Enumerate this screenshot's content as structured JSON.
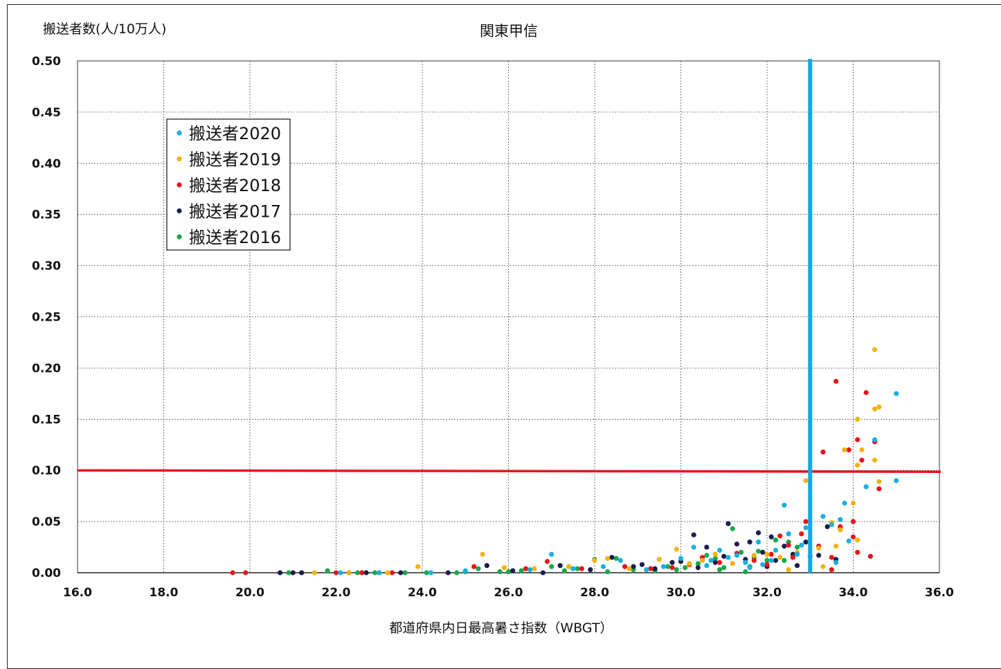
{
  "chart_data": {
    "type": "scatter",
    "title": "関東甲信",
    "ylabel": "搬送者数(人/10万人)",
    "xlabel": "都道府県内日最高暑さ指数（WBGT）",
    "xlim": [
      16.0,
      36.0
    ],
    "ylim": [
      0.0,
      0.5
    ],
    "xticks": [
      "16.0",
      "18.0",
      "20.0",
      "22.0",
      "24.0",
      "26.0",
      "28.0",
      "30.0",
      "32.0",
      "34.0",
      "36.0"
    ],
    "yticks": [
      "0.00",
      "0.05",
      "0.10",
      "0.15",
      "0.20",
      "0.25",
      "0.30",
      "0.35",
      "0.40",
      "0.45",
      "0.50"
    ],
    "grid": true,
    "legend_position": "top-left",
    "reference_lines": [
      {
        "orientation": "horizontal",
        "value": 0.1,
        "color": "#e8141c"
      },
      {
        "orientation": "vertical",
        "value": 33.0,
        "color": "#14a8e6"
      }
    ],
    "series": [
      {
        "name": "搬送者2020",
        "color": "#19afe0",
        "points": [
          [
            22.1,
            0.0
          ],
          [
            23.0,
            0.0
          ],
          [
            24.2,
            0.0
          ],
          [
            25.0,
            0.002
          ],
          [
            26.5,
            0.003
          ],
          [
            27.0,
            0.018
          ],
          [
            27.5,
            0.004
          ],
          [
            28.2,
            0.006
          ],
          [
            28.6,
            0.012
          ],
          [
            29.2,
            0.003
          ],
          [
            29.6,
            0.006
          ],
          [
            30.0,
            0.014
          ],
          [
            30.3,
            0.025
          ],
          [
            30.6,
            0.007
          ],
          [
            30.9,
            0.022
          ],
          [
            31.1,
            0.015
          ],
          [
            31.3,
            0.017
          ],
          [
            31.5,
            0.01
          ],
          [
            31.8,
            0.03
          ],
          [
            31.9,
            0.008
          ],
          [
            32.2,
            0.022
          ],
          [
            32.4,
            0.066
          ],
          [
            32.5,
            0.038
          ],
          [
            32.7,
            0.018
          ],
          [
            32.8,
            0.027
          ],
          [
            32.9,
            0.044
          ],
          [
            33.0,
            0.016
          ],
          [
            33.3,
            0.055
          ],
          [
            33.5,
            0.047
          ],
          [
            33.6,
            0.01
          ],
          [
            33.7,
            0.052
          ],
          [
            33.8,
            0.068
          ],
          [
            34.3,
            0.084
          ],
          [
            34.5,
            0.13
          ],
          [
            35.0,
            0.175
          ],
          [
            35.0,
            0.09
          ],
          [
            33.9,
            0.031
          ],
          [
            32.1,
            0.012
          ],
          [
            31.6,
            0.005
          ],
          [
            30.7,
            0.012
          ]
        ]
      },
      {
        "name": "搬送者2019",
        "color": "#f2b30c",
        "points": [
          [
            21.5,
            0.0
          ],
          [
            22.3,
            0.0
          ],
          [
            23.2,
            0.0
          ],
          [
            23.9,
            0.006
          ],
          [
            25.4,
            0.018
          ],
          [
            25.9,
            0.005
          ],
          [
            26.6,
            0.004
          ],
          [
            27.4,
            0.006
          ],
          [
            28.0,
            0.012
          ],
          [
            28.3,
            0.014
          ],
          [
            28.8,
            0.004
          ],
          [
            29.5,
            0.013
          ],
          [
            29.9,
            0.023
          ],
          [
            30.2,
            0.009
          ],
          [
            30.5,
            0.012
          ],
          [
            30.8,
            0.018
          ],
          [
            31.2,
            0.009
          ],
          [
            31.5,
            0.01
          ],
          [
            31.7,
            0.017
          ],
          [
            32.0,
            0.018
          ],
          [
            32.3,
            0.015
          ],
          [
            32.5,
            0.003
          ],
          [
            32.7,
            0.02
          ],
          [
            32.9,
            0.09
          ],
          [
            33.2,
            0.024
          ],
          [
            33.5,
            0.049
          ],
          [
            33.6,
            0.026
          ],
          [
            33.7,
            0.042
          ],
          [
            33.8,
            0.12
          ],
          [
            34.0,
            0.068
          ],
          [
            34.1,
            0.105
          ],
          [
            34.1,
            0.15
          ],
          [
            34.2,
            0.12
          ],
          [
            34.5,
            0.11
          ],
          [
            34.5,
            0.16
          ],
          [
            34.6,
            0.162
          ],
          [
            34.5,
            0.218
          ],
          [
            34.6,
            0.089
          ],
          [
            34.1,
            0.032
          ],
          [
            33.3,
            0.006
          ]
        ]
      },
      {
        "name": "搬送者2018",
        "color": "#e8141c",
        "points": [
          [
            19.6,
            0.0
          ],
          [
            19.9,
            0.0
          ],
          [
            22.0,
            0.0
          ],
          [
            22.6,
            0.0
          ],
          [
            23.3,
            0.0
          ],
          [
            25.2,
            0.006
          ],
          [
            26.4,
            0.004
          ],
          [
            26.9,
            0.011
          ],
          [
            27.7,
            0.004
          ],
          [
            28.7,
            0.006
          ],
          [
            29.3,
            0.004
          ],
          [
            29.8,
            0.005
          ],
          [
            30.2,
            0.008
          ],
          [
            30.5,
            0.015
          ],
          [
            30.9,
            0.01
          ],
          [
            31.3,
            0.019
          ],
          [
            31.7,
            0.012
          ],
          [
            32.0,
            0.008
          ],
          [
            32.1,
            0.018
          ],
          [
            32.3,
            0.036
          ],
          [
            32.5,
            0.027
          ],
          [
            32.6,
            0.015
          ],
          [
            32.8,
            0.038
          ],
          [
            32.9,
            0.05
          ],
          [
            33.2,
            0.026
          ],
          [
            33.3,
            0.118
          ],
          [
            33.5,
            0.003
          ],
          [
            33.5,
            0.015
          ],
          [
            33.6,
            0.187
          ],
          [
            33.7,
            0.045
          ],
          [
            33.9,
            0.12
          ],
          [
            34.0,
            0.05
          ],
          [
            34.0,
            0.035
          ],
          [
            34.1,
            0.02
          ],
          [
            34.1,
            0.13
          ],
          [
            34.2,
            0.11
          ],
          [
            34.3,
            0.176
          ],
          [
            34.4,
            0.016
          ],
          [
            34.5,
            0.128
          ],
          [
            34.6,
            0.082
          ]
        ]
      },
      {
        "name": "搬送者2017",
        "color": "#1a1f4f",
        "points": [
          [
            20.7,
            0.0
          ],
          [
            21.0,
            0.0
          ],
          [
            21.2,
            0.0
          ],
          [
            22.3,
            0.0
          ],
          [
            22.7,
            0.0
          ],
          [
            23.5,
            0.0
          ],
          [
            24.6,
            0.0
          ],
          [
            25.5,
            0.007
          ],
          [
            26.1,
            0.002
          ],
          [
            26.8,
            0.0
          ],
          [
            27.2,
            0.007
          ],
          [
            27.9,
            0.003
          ],
          [
            28.4,
            0.015
          ],
          [
            28.9,
            0.006
          ],
          [
            29.4,
            0.004
          ],
          [
            29.8,
            0.01
          ],
          [
            30.0,
            0.011
          ],
          [
            30.3,
            0.037
          ],
          [
            30.6,
            0.025
          ],
          [
            30.8,
            0.01
          ],
          [
            31.1,
            0.048
          ],
          [
            31.3,
            0.028
          ],
          [
            31.5,
            0.013
          ],
          [
            31.6,
            0.03
          ],
          [
            31.8,
            0.039
          ],
          [
            31.9,
            0.02
          ],
          [
            32.1,
            0.035
          ],
          [
            32.2,
            0.012
          ],
          [
            32.4,
            0.026
          ],
          [
            32.6,
            0.018
          ],
          [
            32.7,
            0.007
          ],
          [
            32.9,
            0.03
          ],
          [
            33.2,
            0.017
          ],
          [
            33.4,
            0.045
          ],
          [
            33.6,
            0.013
          ],
          [
            33.7,
            0.044
          ],
          [
            32.0,
            0.006
          ],
          [
            31.0,
            0.016
          ],
          [
            30.4,
            0.005
          ],
          [
            29.1,
            0.008
          ]
        ]
      },
      {
        "name": "搬送者2016",
        "color": "#17a84a",
        "points": [
          [
            20.9,
            0.0
          ],
          [
            21.8,
            0.002
          ],
          [
            22.5,
            0.0
          ],
          [
            22.9,
            0.0
          ],
          [
            23.6,
            0.0
          ],
          [
            24.1,
            0.0
          ],
          [
            24.8,
            0.0
          ],
          [
            25.3,
            0.004
          ],
          [
            25.8,
            0.001
          ],
          [
            26.3,
            0.002
          ],
          [
            27.0,
            0.006
          ],
          [
            27.6,
            0.004
          ],
          [
            28.0,
            0.013
          ],
          [
            28.5,
            0.014
          ],
          [
            28.9,
            0.003
          ],
          [
            29.4,
            0.002
          ],
          [
            29.7,
            0.006
          ],
          [
            30.1,
            0.005
          ],
          [
            30.4,
            0.009
          ],
          [
            30.6,
            0.017
          ],
          [
            30.8,
            0.014
          ],
          [
            31.0,
            0.005
          ],
          [
            31.2,
            0.043
          ],
          [
            31.4,
            0.02
          ],
          [
            31.6,
            0.006
          ],
          [
            31.8,
            0.021
          ],
          [
            32.0,
            0.012
          ],
          [
            32.2,
            0.032
          ],
          [
            32.4,
            0.012
          ],
          [
            32.5,
            0.03
          ],
          [
            32.7,
            0.025
          ],
          [
            31.5,
            0.001
          ],
          [
            30.9,
            0.003
          ],
          [
            29.9,
            0.003
          ],
          [
            28.3,
            0.001
          ],
          [
            27.3,
            0.002
          ],
          [
            26.0,
            0.001
          ],
          [
            25.0,
            0.001
          ],
          [
            23.0,
            0.0
          ],
          [
            31.7,
            0.015
          ]
        ]
      }
    ]
  }
}
